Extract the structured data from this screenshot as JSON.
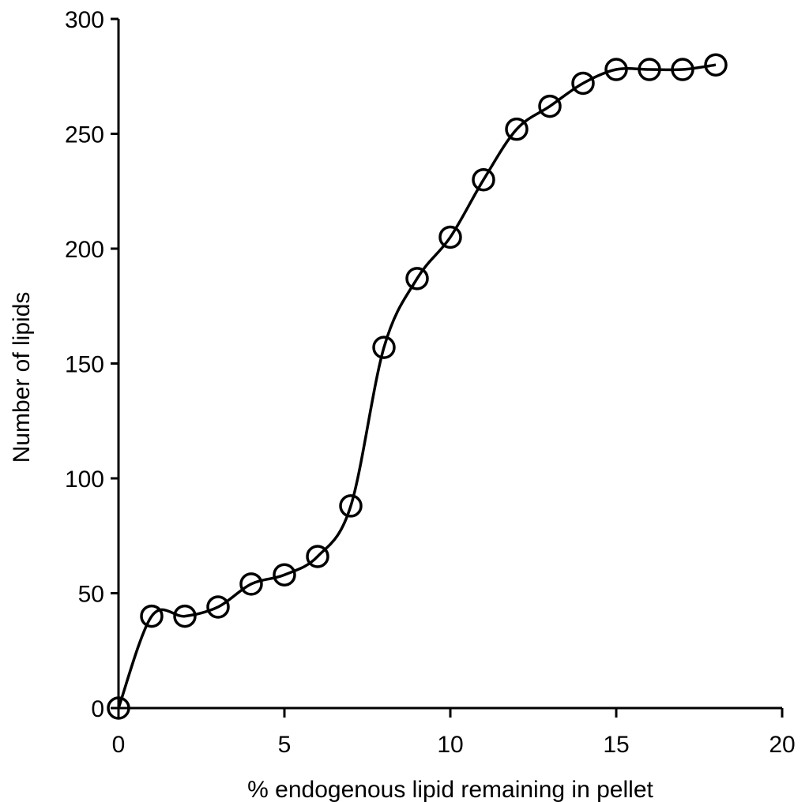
{
  "chart_data": {
    "type": "line",
    "title": "",
    "xlabel": "% endogenous lipid remaining in pellet",
    "ylabel": "Number of lipids",
    "xlim": [
      0,
      20
    ],
    "ylim": [
      0,
      300
    ],
    "xticks": [
      0,
      5,
      10,
      15,
      20
    ],
    "yticks": [
      0,
      50,
      100,
      150,
      200,
      250,
      300
    ],
    "grid": false,
    "legend": null,
    "marker": "open-circle",
    "line_style": "smoothed",
    "series": [
      {
        "name": "Number of lipids",
        "x": [
          0,
          1,
          2,
          3,
          4,
          5,
          6,
          7,
          8,
          9,
          10,
          11,
          12,
          13,
          14,
          15,
          16,
          17,
          18
        ],
        "values": [
          0,
          40,
          40,
          44,
          54,
          58,
          66,
          88,
          157,
          187,
          205,
          230,
          252,
          262,
          272,
          278,
          278,
          278,
          280
        ]
      }
    ],
    "colors": {
      "line": "#000000",
      "marker": "#000000",
      "background": "#ffffff"
    }
  }
}
